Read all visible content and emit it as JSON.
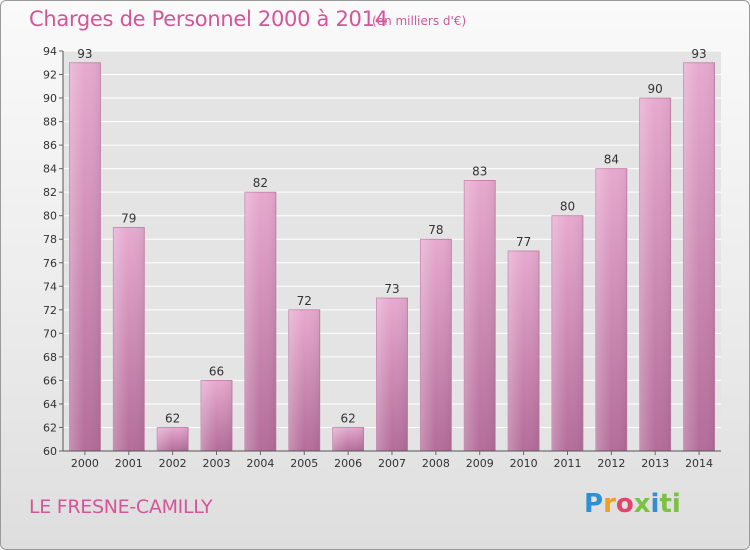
{
  "title": "Charges de Personnel 2000 à 2014",
  "subtitle": "(en milliers d'€)",
  "place": "LE FRESNE-CAMILLY",
  "logo": {
    "letters": [
      "P",
      "r",
      "o",
      "x",
      "i",
      "ti"
    ]
  },
  "colors": {
    "title": "#d4559a",
    "bar_top": "#e7a9cf",
    "bar_bottom": "#b36d99",
    "grid": "#ffffff"
  },
  "chart_data": {
    "type": "bar",
    "categories": [
      "2000",
      "2001",
      "2002",
      "2003",
      "2004",
      "2005",
      "2006",
      "2007",
      "2008",
      "2009",
      "2010",
      "2011",
      "2012",
      "2013",
      "2014"
    ],
    "values": [
      93,
      79,
      62,
      66,
      82,
      72,
      62,
      73,
      78,
      83,
      77,
      80,
      84,
      90,
      93
    ],
    "ylim": [
      60,
      94
    ],
    "yticks": [
      60,
      62,
      64,
      66,
      68,
      70,
      72,
      74,
      76,
      78,
      80,
      82,
      84,
      86,
      88,
      90,
      92,
      94
    ],
    "grid": true,
    "data_labels": true
  }
}
